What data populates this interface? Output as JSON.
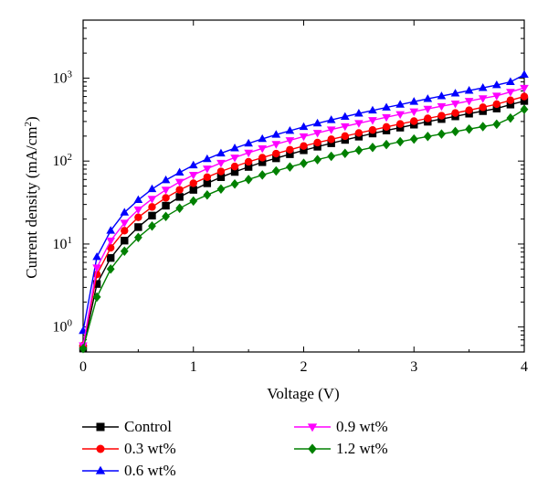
{
  "chart_data": {
    "type": "line",
    "xlabel": "Voltage (V)",
    "ylabel_main": "Current density (mA/cm",
    "ylabel_sup": "2",
    "ylabel_close": ")",
    "xlim": [
      0,
      4
    ],
    "ylim": [
      0.5,
      5000
    ],
    "yscale": "log",
    "xticks": [
      0,
      1,
      2,
      3,
      4
    ],
    "xtick_labels": [
      "0",
      "1",
      "2",
      "3",
      "4"
    ],
    "yticks": [
      1,
      10,
      100,
      1000
    ],
    "ytick_labels": [
      {
        "base": "10",
        "exp": "0"
      },
      {
        "base": "10",
        "exp": "1"
      },
      {
        "base": "10",
        "exp": "2"
      },
      {
        "base": "10",
        "exp": "3"
      }
    ],
    "legend_placement": "bottom",
    "x": [
      0,
      0.125,
      0.25,
      0.375,
      0.5,
      0.625,
      0.75,
      0.875,
      1.0,
      1.125,
      1.25,
      1.375,
      1.5,
      1.625,
      1.75,
      1.875,
      2.0,
      2.125,
      2.25,
      2.375,
      2.5,
      2.625,
      2.75,
      2.875,
      3.0,
      3.125,
      3.25,
      3.375,
      3.5,
      3.625,
      3.75,
      3.875,
      4.0
    ],
    "series": [
      {
        "name": "Control",
        "color": "#000000",
        "marker": "square",
        "values": [
          0.55,
          3.3,
          6.8,
          11,
          16,
          22,
          29,
          37,
          45,
          54,
          64,
          74,
          85,
          97,
          108,
          121,
          135,
          149,
          164,
          180,
          197,
          215,
          234,
          253,
          275,
          298,
          321,
          346,
          373,
          400,
          430,
          480,
          530
        ]
      },
      {
        "name": "0.3 wt%",
        "color": "#ff0000",
        "marker": "circle",
        "values": [
          0.6,
          4.3,
          9.0,
          14.5,
          21,
          28,
          36,
          45,
          54,
          64,
          75,
          86,
          98,
          110,
          123,
          137,
          152,
          167,
          183,
          200,
          218,
          237,
          258,
          280,
          303,
          327,
          352,
          380,
          410,
          445,
          485,
          540,
          600
        ]
      },
      {
        "name": "0.6 wt%",
        "color": "#0000ff",
        "marker": "triangle-up",
        "values": [
          0.9,
          7.0,
          14.5,
          24,
          34,
          46,
          59,
          73,
          89,
          106,
          124,
          143,
          163,
          185,
          208,
          232,
          258,
          285,
          313,
          343,
          375,
          408,
          443,
          480,
          520,
          562,
          607,
          655,
          707,
          763,
          824,
          900,
          1100
        ]
      },
      {
        "name": "0.9 wt%",
        "color": "#ff00ff",
        "marker": "triangle-down",
        "values": [
          0.6,
          5.2,
          11,
          18,
          26,
          35,
          45,
          56,
          68,
          81,
          95,
          110,
          126,
          142,
          160,
          178,
          198,
          218,
          240,
          262,
          286,
          311,
          338,
          366,
          395,
          426,
          458,
          492,
          530,
          570,
          612,
          680,
          760
        ]
      },
      {
        "name": "1.2 wt%",
        "color": "#008000",
        "marker": "diamond",
        "values": [
          0.55,
          2.3,
          5.0,
          8.2,
          12,
          16.5,
          21.5,
          27,
          33,
          39,
          46,
          53,
          60,
          68,
          76,
          85,
          94,
          104,
          114,
          124,
          135,
          146,
          158,
          171,
          184,
          198,
          212,
          227,
          243,
          260,
          278,
          330,
          420
        ]
      }
    ]
  }
}
